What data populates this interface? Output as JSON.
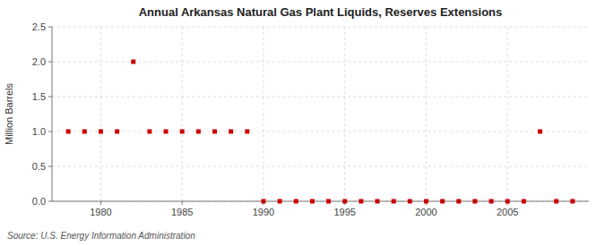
{
  "chart_data": {
    "type": "scatter",
    "title": "Annual Arkansas Natural Gas Plant Liquids, Reserves Extensions",
    "ylabel": "Million Barrels",
    "annotations": [
      "Source: U.S. Energy Information Administration"
    ],
    "color": "#cc0000",
    "marker": "square",
    "grid": true,
    "xlim": [
      1977,
      2010
    ],
    "ylim": [
      0,
      2.5
    ],
    "xticks": [
      1980,
      1985,
      1990,
      1995,
      2000,
      2005
    ],
    "yticks": [
      {
        "value": 0,
        "label": "0.0"
      },
      0.5,
      {
        "value": 1,
        "label": "1.0"
      },
      1.5,
      {
        "value": 2,
        "label": "2.0"
      },
      2.5
    ],
    "x": [
      1978,
      1979,
      1980,
      1981,
      1982,
      1983,
      1984,
      1985,
      1986,
      1987,
      1988,
      1989,
      1990,
      1991,
      1992,
      1993,
      1994,
      1995,
      1996,
      1997,
      1998,
      1999,
      2000,
      2001,
      2002,
      2003,
      2004,
      2005,
      2006,
      2007,
      2008,
      2009
    ],
    "values": [
      1,
      1,
      1,
      1,
      2,
      1,
      1,
      1,
      1,
      1,
      1,
      1,
      0,
      0,
      0,
      0,
      0,
      0,
      0,
      0,
      0,
      0,
      0,
      0,
      0,
      0,
      0,
      0,
      0,
      1,
      0,
      0
    ]
  }
}
